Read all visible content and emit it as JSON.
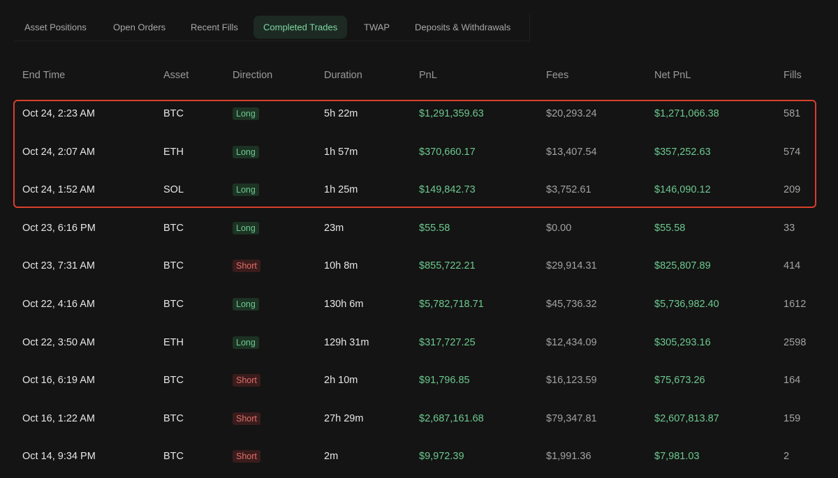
{
  "tabs": [
    "Asset Positions",
    "Open Orders",
    "Recent Fills",
    "Completed Trades",
    "TWAP",
    "Deposits & Withdrawals"
  ],
  "table": {
    "headers": [
      "End Time",
      "Asset",
      "Direction",
      "Duration",
      "PnL",
      "Fees",
      "Net PnL",
      "Fills"
    ],
    "rows": [
      [
        "Oct 24, 2:23 AM",
        "BTC",
        "Long",
        "5h 22m",
        "$1,291,359.63",
        "$20,293.24",
        "$1,271,066.38",
        "581"
      ],
      [
        "Oct 24, 2:07 AM",
        "ETH",
        "Long",
        "1h 57m",
        "$370,660.17",
        "$13,407.54",
        "$357,252.63",
        "574"
      ],
      [
        "Oct 24, 1:52 AM",
        "SOL",
        "Long",
        "1h 25m",
        "$149,842.73",
        "$3,752.61",
        "$146,090.12",
        "209"
      ],
      [
        "Oct 23, 6:16 PM",
        "BTC",
        "Long",
        "23m",
        "$55.58",
        "$0.00",
        "$55.58",
        "33"
      ],
      [
        "Oct 23, 7:31 AM",
        "BTC",
        "Short",
        "10h 8m",
        "$855,722.21",
        "$29,914.31",
        "$825,807.89",
        "414"
      ],
      [
        "Oct 22, 4:16 AM",
        "BTC",
        "Long",
        "130h 6m",
        "$5,782,718.71",
        "$45,736.32",
        "$5,736,982.40",
        "1612"
      ],
      [
        "Oct 22, 3:50 AM",
        "ETH",
        "Long",
        "129h 31m",
        "$317,727.25",
        "$12,434.09",
        "$305,293.16",
        "2598"
      ],
      [
        "Oct 16, 6:19 AM",
        "BTC",
        "Short",
        "2h 10m",
        "$91,796.85",
        "$16,123.59",
        "$75,673.26",
        "164"
      ],
      [
        "Oct 16, 1:22 AM",
        "BTC",
        "Short",
        "27h 29m",
        "$2,687,161.68",
        "$79,347.81",
        "$2,607,813.87",
        "159"
      ],
      [
        "Oct 14, 9:34 PM",
        "BTC",
        "Short",
        "2m",
        "$9,972.39",
        "$1,991.36",
        "$7,981.03",
        "2"
      ]
    ]
  }
}
